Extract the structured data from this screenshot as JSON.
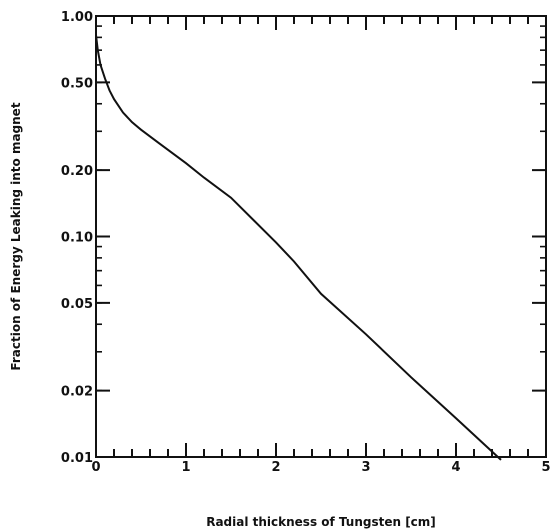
{
  "chart_data": {
    "type": "line",
    "title": "",
    "xlabel": "Radial thickness of Tungsten [cm]",
    "ylabel": "Fraction of Energy Leaking into magnet",
    "xlim": [
      0,
      5
    ],
    "ylim": [
      0.01,
      1.0
    ],
    "yscale": "log",
    "grid": false,
    "x_ticks": [
      "0",
      "1",
      "2",
      "3",
      "4",
      "5"
    ],
    "y_ticks": [
      "1.00",
      "0.50",
      "0.20",
      "0.10",
      "0.05",
      "0.02",
      "0.01"
    ],
    "series": [
      {
        "x": [
          0.0,
          0.02,
          0.05,
          0.1,
          0.15,
          0.2,
          0.3,
          0.4,
          0.5,
          0.7,
          1.0,
          1.2,
          1.5,
          2.0,
          2.2,
          2.5,
          3.0,
          3.5,
          4.0,
          4.5
        ],
        "y": [
          0.82,
          0.7,
          0.6,
          0.52,
          0.46,
          0.42,
          0.365,
          0.33,
          0.305,
          0.265,
          0.215,
          0.185,
          0.15,
          0.094,
          0.077,
          0.055,
          0.036,
          0.023,
          0.015,
          0.0097
        ]
      }
    ]
  }
}
